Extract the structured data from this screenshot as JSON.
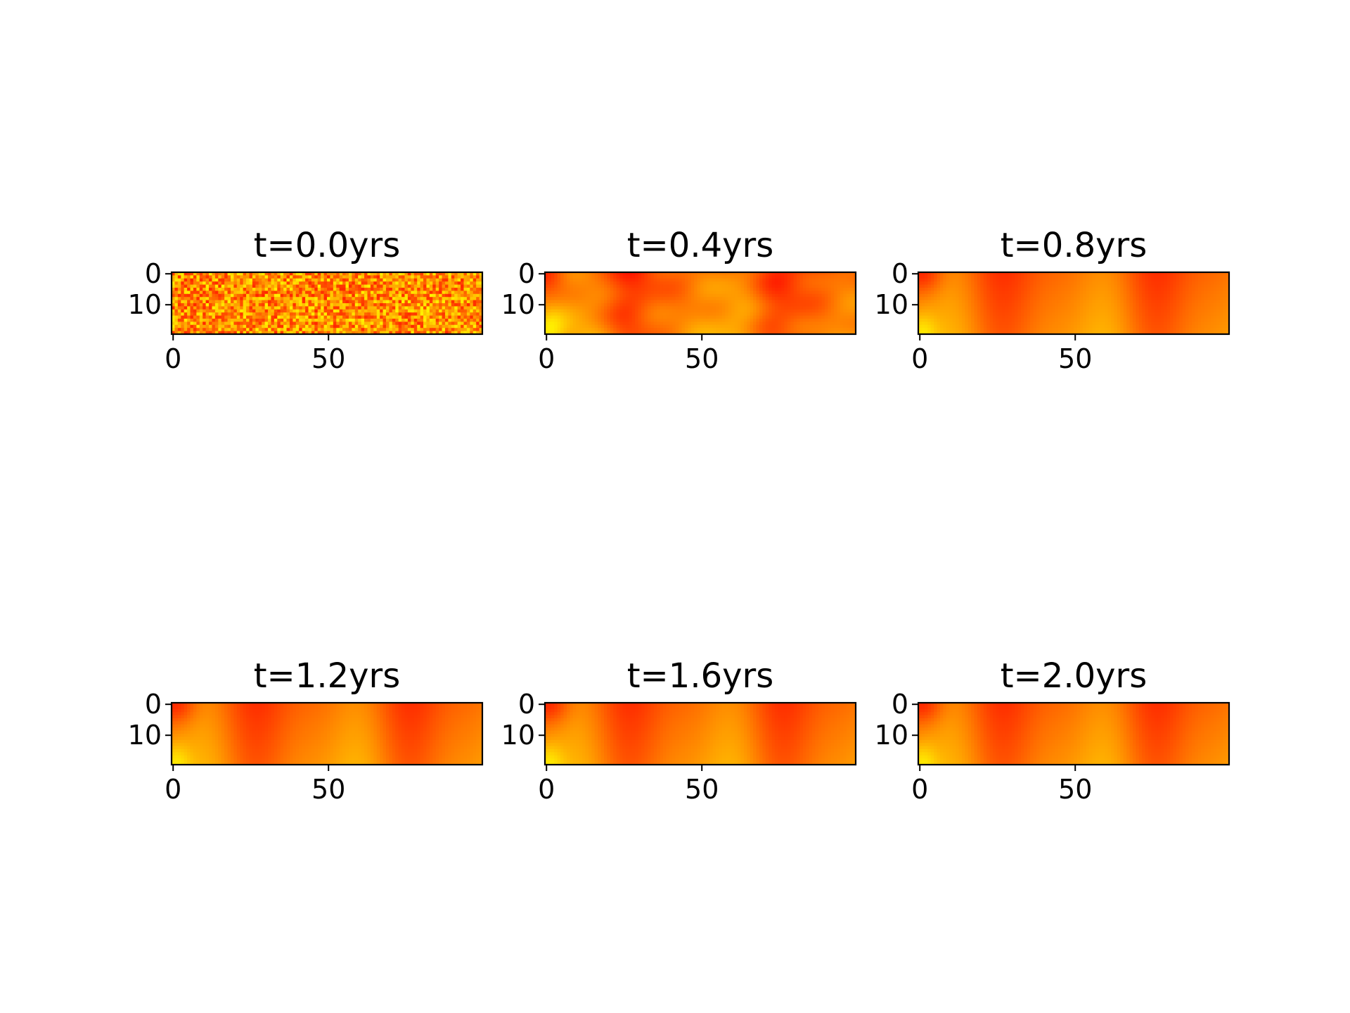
{
  "chart_data": [
    {
      "type": "heatmap",
      "title": "t=0.0yrs",
      "xlabel": "",
      "ylabel": "",
      "grid_size": [
        20,
        100
      ],
      "colormap": "autumn",
      "colors": {
        "low": "#ff0000",
        "high": "#ffff00"
      },
      "field": "noise",
      "xticks": [
        0,
        50
      ],
      "yticks": [
        0,
        10
      ],
      "xlim": [
        0,
        99
      ],
      "ylim": [
        19,
        0
      ]
    },
    {
      "type": "heatmap",
      "title": "t=0.4yrs",
      "xlabel": "",
      "ylabel": "",
      "grid_size": [
        20,
        100
      ],
      "colormap": "autumn",
      "colors": {
        "low": "#ff0000",
        "high": "#ffff00"
      },
      "field": "diffusing",
      "xticks": [
        0,
        50
      ],
      "yticks": [
        0,
        10
      ],
      "xlim": [
        0,
        99
      ],
      "ylim": [
        19,
        0
      ]
    },
    {
      "type": "heatmap",
      "title": "t=0.8yrs",
      "xlabel": "",
      "ylabel": "",
      "grid_size": [
        20,
        100
      ],
      "colormap": "autumn",
      "colors": {
        "low": "#ff0000",
        "high": "#ffff00"
      },
      "field": "smooth",
      "xticks": [
        0,
        50
      ],
      "yticks": [
        0,
        10
      ],
      "xlim": [
        0,
        99
      ],
      "ylim": [
        19,
        0
      ]
    },
    {
      "type": "heatmap",
      "title": "t=1.2yrs",
      "xlabel": "",
      "ylabel": "",
      "grid_size": [
        20,
        100
      ],
      "colormap": "autumn",
      "colors": {
        "low": "#ff0000",
        "high": "#ffff00"
      },
      "field": "smooth",
      "xticks": [
        0,
        50
      ],
      "yticks": [
        0,
        10
      ],
      "xlim": [
        0,
        99
      ],
      "ylim": [
        19,
        0
      ]
    },
    {
      "type": "heatmap",
      "title": "t=1.6yrs",
      "xlabel": "",
      "ylabel": "",
      "grid_size": [
        20,
        100
      ],
      "colormap": "autumn",
      "colors": {
        "low": "#ff0000",
        "high": "#ffff00"
      },
      "field": "smooth",
      "xticks": [
        0,
        50
      ],
      "yticks": [
        0,
        10
      ],
      "xlim": [
        0,
        99
      ],
      "ylim": [
        19,
        0
      ]
    },
    {
      "type": "heatmap",
      "title": "t=2.0yrs",
      "xlabel": "",
      "ylabel": "",
      "grid_size": [
        20,
        100
      ],
      "colormap": "autumn",
      "colors": {
        "low": "#ff0000",
        "high": "#ffff00"
      },
      "field": "smooth",
      "xticks": [
        0,
        50
      ],
      "yticks": [
        0,
        10
      ],
      "xlim": [
        0,
        99
      ],
      "ylim": [
        19,
        0
      ]
    }
  ]
}
